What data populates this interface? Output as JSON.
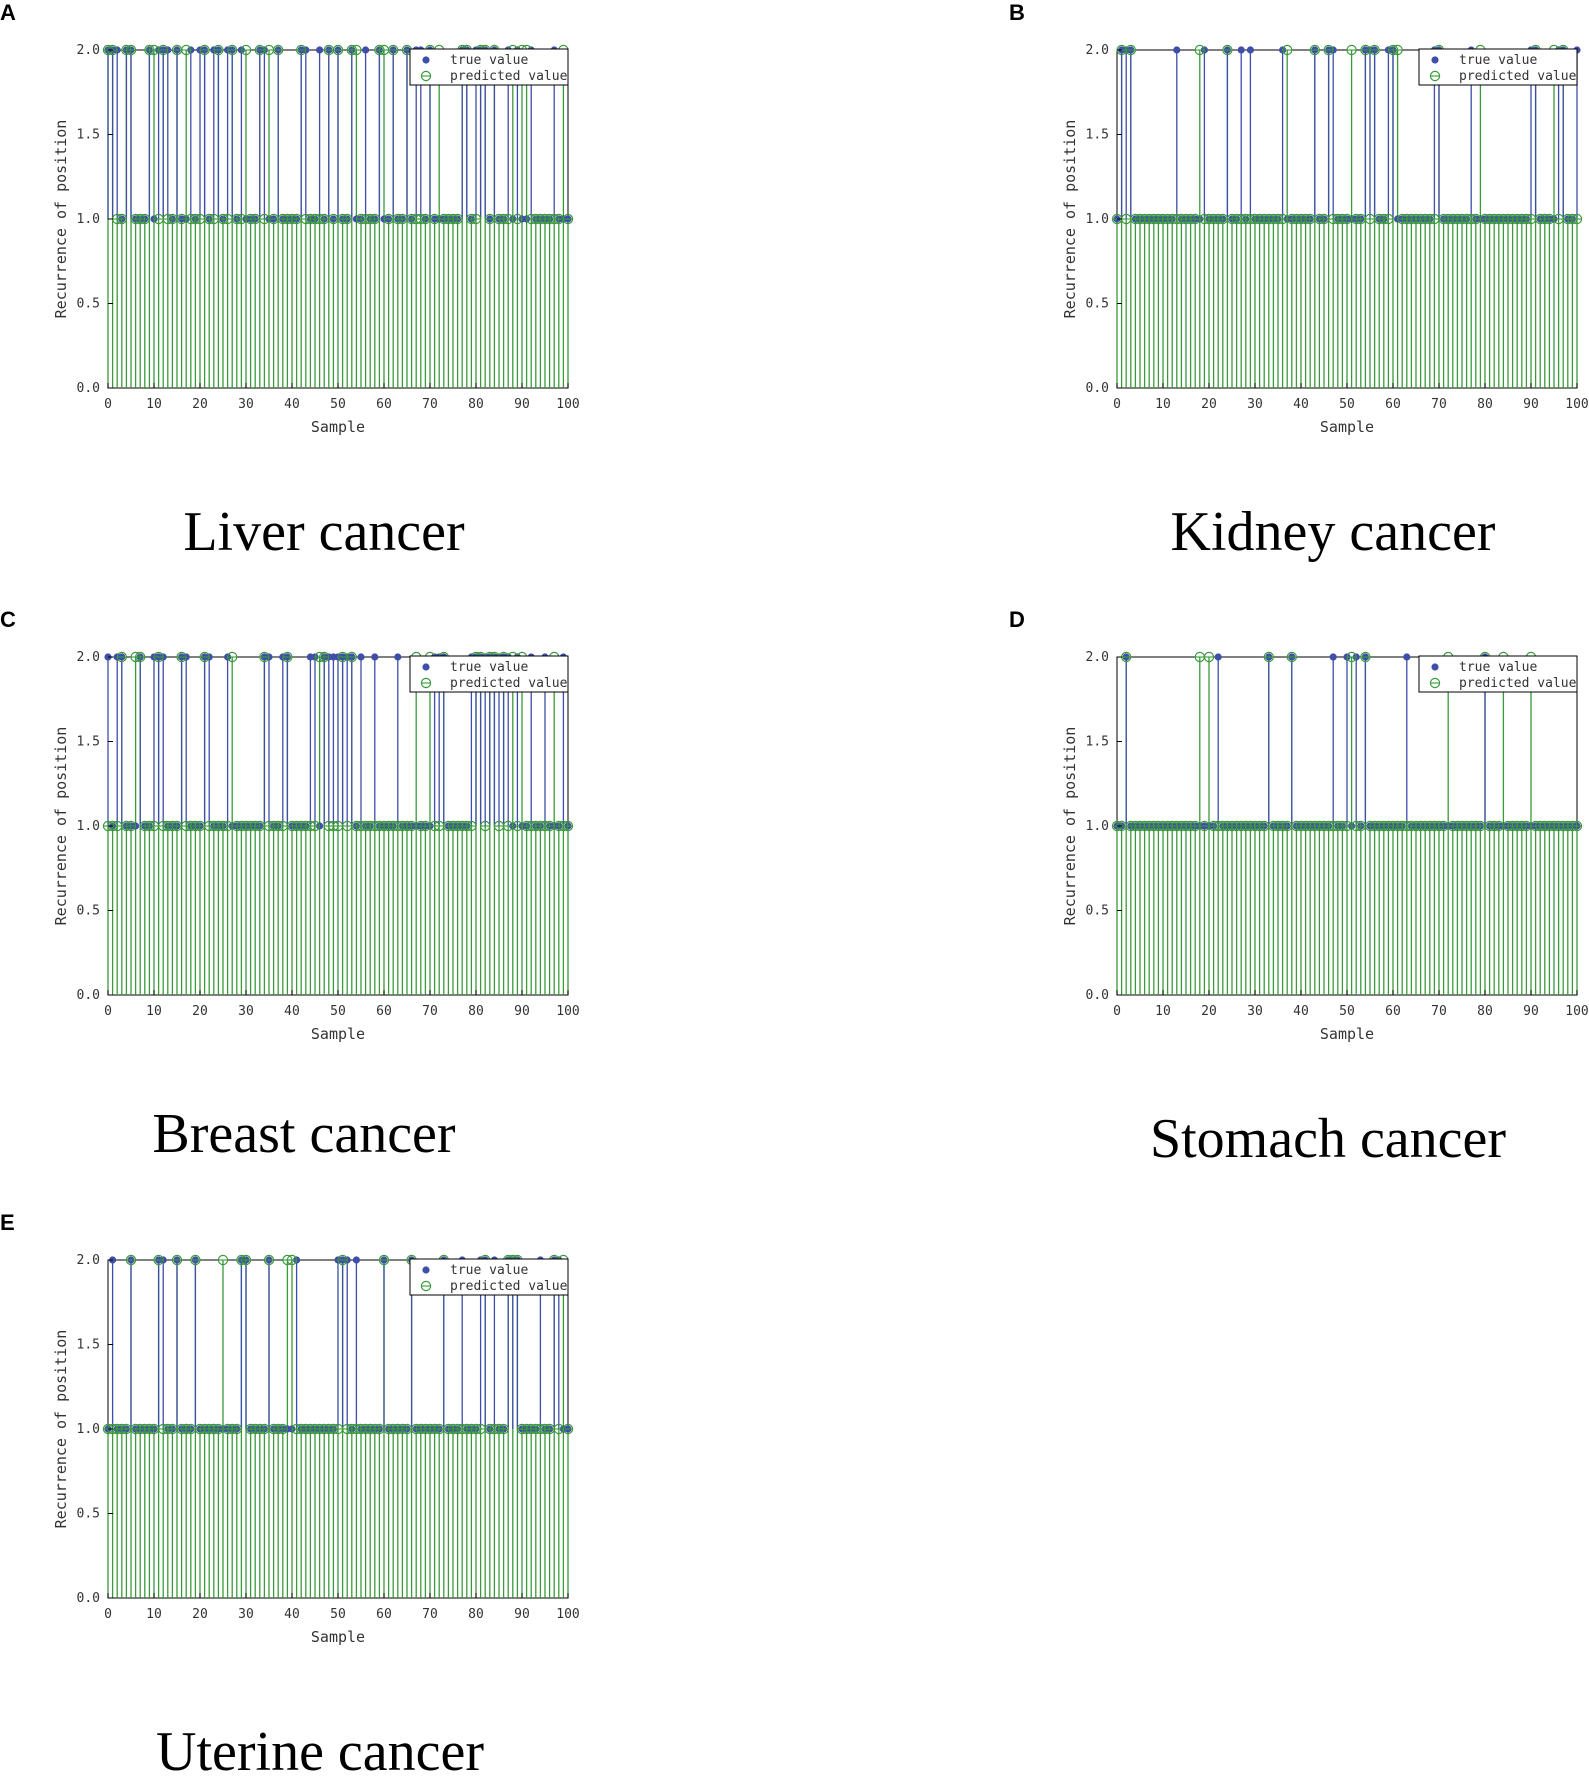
{
  "chart_data": [
    {
      "panel": "A",
      "caption": "Liver cancer",
      "type": "stem",
      "xlabel": "Sample",
      "ylabel": "Recurrence of position",
      "xlim": [
        0,
        100
      ],
      "ylim": [
        0,
        2.0
      ],
      "xticks": [
        "0",
        "10",
        "20",
        "30",
        "40",
        "50",
        "60",
        "70",
        "80",
        "90",
        "100"
      ],
      "yticks": [
        "0.0",
        "0.5",
        "1.0",
        "1.5",
        "2.0"
      ],
      "legend": [
        "true value",
        "predicted value"
      ],
      "legend_position": "top-right",
      "series": [
        {
          "name": "true value",
          "color": "#3f4ea8",
          "label_index": 0,
          "ones_at_two": [
            0,
            1,
            2,
            4,
            5,
            9,
            11,
            12,
            13,
            15,
            18,
            20,
            21,
            23,
            24,
            26,
            27,
            29,
            33,
            34,
            37,
            42,
            43,
            46,
            48,
            50,
            53,
            56,
            59,
            62,
            65,
            67,
            68,
            70,
            77,
            78,
            80,
            81,
            82,
            84,
            87,
            89,
            92,
            97
          ]
        },
        {
          "name": "predicted value",
          "color": "#3a9a3a",
          "label_index": 1,
          "ones_at_two": [
            0,
            1,
            4,
            5,
            9,
            10,
            12,
            15,
            17,
            21,
            24,
            27,
            30,
            33,
            35,
            37,
            42,
            48,
            50,
            53,
            54,
            59,
            60,
            62,
            65,
            70,
            72,
            77,
            78,
            81,
            82,
            84,
            88,
            90,
            91,
            99
          ]
        }
      ],
      "n_samples": 101
    },
    {
      "panel": "B",
      "caption": "Kidney cancer",
      "type": "stem",
      "xlabel": "Sample",
      "ylabel": "Recurrence of position",
      "xlim": [
        0,
        100
      ],
      "ylim": [
        0,
        2.0
      ],
      "xticks": [
        "0",
        "10",
        "20",
        "30",
        "40",
        "50",
        "60",
        "70",
        "80",
        "90",
        "100"
      ],
      "yticks": [
        "0.0",
        "0.5",
        "1.0",
        "1.5",
        "2.0"
      ],
      "legend": [
        "true value",
        "predicted value"
      ],
      "legend_position": "top-right",
      "series": [
        {
          "name": "true value",
          "color": "#3f4ea8",
          "label_index": 0,
          "ones_at_two": [
            1,
            2,
            3,
            13,
            19,
            24,
            27,
            29,
            36,
            43,
            46,
            47,
            54,
            55,
            56,
            59,
            60,
            69,
            70,
            77,
            90,
            91,
            96,
            97,
            100
          ]
        },
        {
          "name": "predicted value",
          "color": "#3a9a3a",
          "label_index": 1,
          "ones_at_two": [
            1,
            3,
            18,
            24,
            37,
            43,
            46,
            51,
            54,
            56,
            60,
            61,
            70,
            79,
            91,
            95,
            97
          ]
        }
      ],
      "n_samples": 101
    },
    {
      "panel": "C",
      "caption": "Breast cancer",
      "type": "stem",
      "xlabel": "Sample",
      "ylabel": "Recurrence of position",
      "xlim": [
        0,
        100
      ],
      "ylim": [
        0,
        2.0
      ],
      "xticks": [
        "0",
        "10",
        "20",
        "30",
        "40",
        "50",
        "60",
        "70",
        "80",
        "90",
        "100"
      ],
      "yticks": [
        "0.0",
        "0.5",
        "1.0",
        "1.5",
        "2.0"
      ],
      "legend": [
        "true value",
        "predicted value"
      ],
      "legend_position": "top-right",
      "series": [
        {
          "name": "true value",
          "color": "#3f4ea8",
          "label_index": 0,
          "ones_at_two": [
            0,
            2,
            3,
            7,
            10,
            11,
            12,
            16,
            17,
            21,
            22,
            26,
            34,
            35,
            38,
            39,
            44,
            45,
            47,
            48,
            49,
            50,
            51,
            52,
            53,
            55,
            58,
            63,
            71,
            72,
            73,
            79,
            80,
            81,
            82,
            83,
            84,
            85,
            86,
            87,
            89,
            92,
            95,
            99
          ]
        },
        {
          "name": "predicted value",
          "color": "#3a9a3a",
          "label_index": 1,
          "ones_at_two": [
            3,
            6,
            7,
            11,
            16,
            21,
            27,
            34,
            39,
            46,
            47,
            51,
            53,
            67,
            70,
            73,
            80,
            81,
            83,
            84,
            86,
            88,
            90,
            97
          ]
        }
      ],
      "n_samples": 101
    },
    {
      "panel": "D",
      "caption": "Stomach cancer",
      "type": "stem",
      "xlabel": "Sample",
      "ylabel": "Recurrence of position",
      "xlim": [
        0,
        100
      ],
      "ylim": [
        0,
        2.0
      ],
      "xticks": [
        "0",
        "10",
        "20",
        "30",
        "40",
        "50",
        "60",
        "70",
        "80",
        "90",
        "100"
      ],
      "yticks": [
        "0.0",
        "0.5",
        "1.0",
        "1.5",
        "2.0"
      ],
      "legend": [
        "true value",
        "predicted value"
      ],
      "legend_position": "top-right",
      "series": [
        {
          "name": "true value",
          "color": "#3f4ea8",
          "label_index": 0,
          "ones_at_two": [
            2,
            22,
            33,
            38,
            47,
            50,
            52,
            54,
            63,
            80
          ]
        },
        {
          "name": "predicted value",
          "color": "#3a9a3a",
          "label_index": 1,
          "ones_at_two": [
            2,
            18,
            20,
            33,
            38,
            51,
            54,
            72,
            80,
            84,
            90
          ]
        }
      ],
      "n_samples": 101
    },
    {
      "panel": "E",
      "caption": "Uterine cancer",
      "type": "stem",
      "xlabel": "Sample",
      "ylabel": "Recurrence of position",
      "xlim": [
        0,
        100
      ],
      "ylim": [
        0,
        2.0
      ],
      "xticks": [
        "0",
        "10",
        "20",
        "30",
        "40",
        "50",
        "60",
        "70",
        "80",
        "90",
        "100"
      ],
      "yticks": [
        "0.0",
        "0.5",
        "1.0",
        "1.5",
        "2.0"
      ],
      "legend": [
        "true value",
        "predicted value"
      ],
      "legend_position": "top-right",
      "series": [
        {
          "name": "true value",
          "color": "#3f4ea8",
          "label_index": 0,
          "ones_at_two": [
            1,
            5,
            11,
            12,
            15,
            19,
            29,
            30,
            35,
            41,
            50,
            51,
            52,
            54,
            60,
            66,
            73,
            77,
            81,
            82,
            84,
            87,
            88,
            89,
            94,
            97,
            98
          ]
        },
        {
          "name": "predicted value",
          "color": "#3a9a3a",
          "label_index": 1,
          "ones_at_two": [
            5,
            11,
            15,
            19,
            25,
            29,
            30,
            35,
            39,
            40,
            51,
            60,
            66,
            73,
            82,
            87,
            88,
            89,
            97,
            99
          ]
        }
      ],
      "n_samples": 101
    }
  ]
}
